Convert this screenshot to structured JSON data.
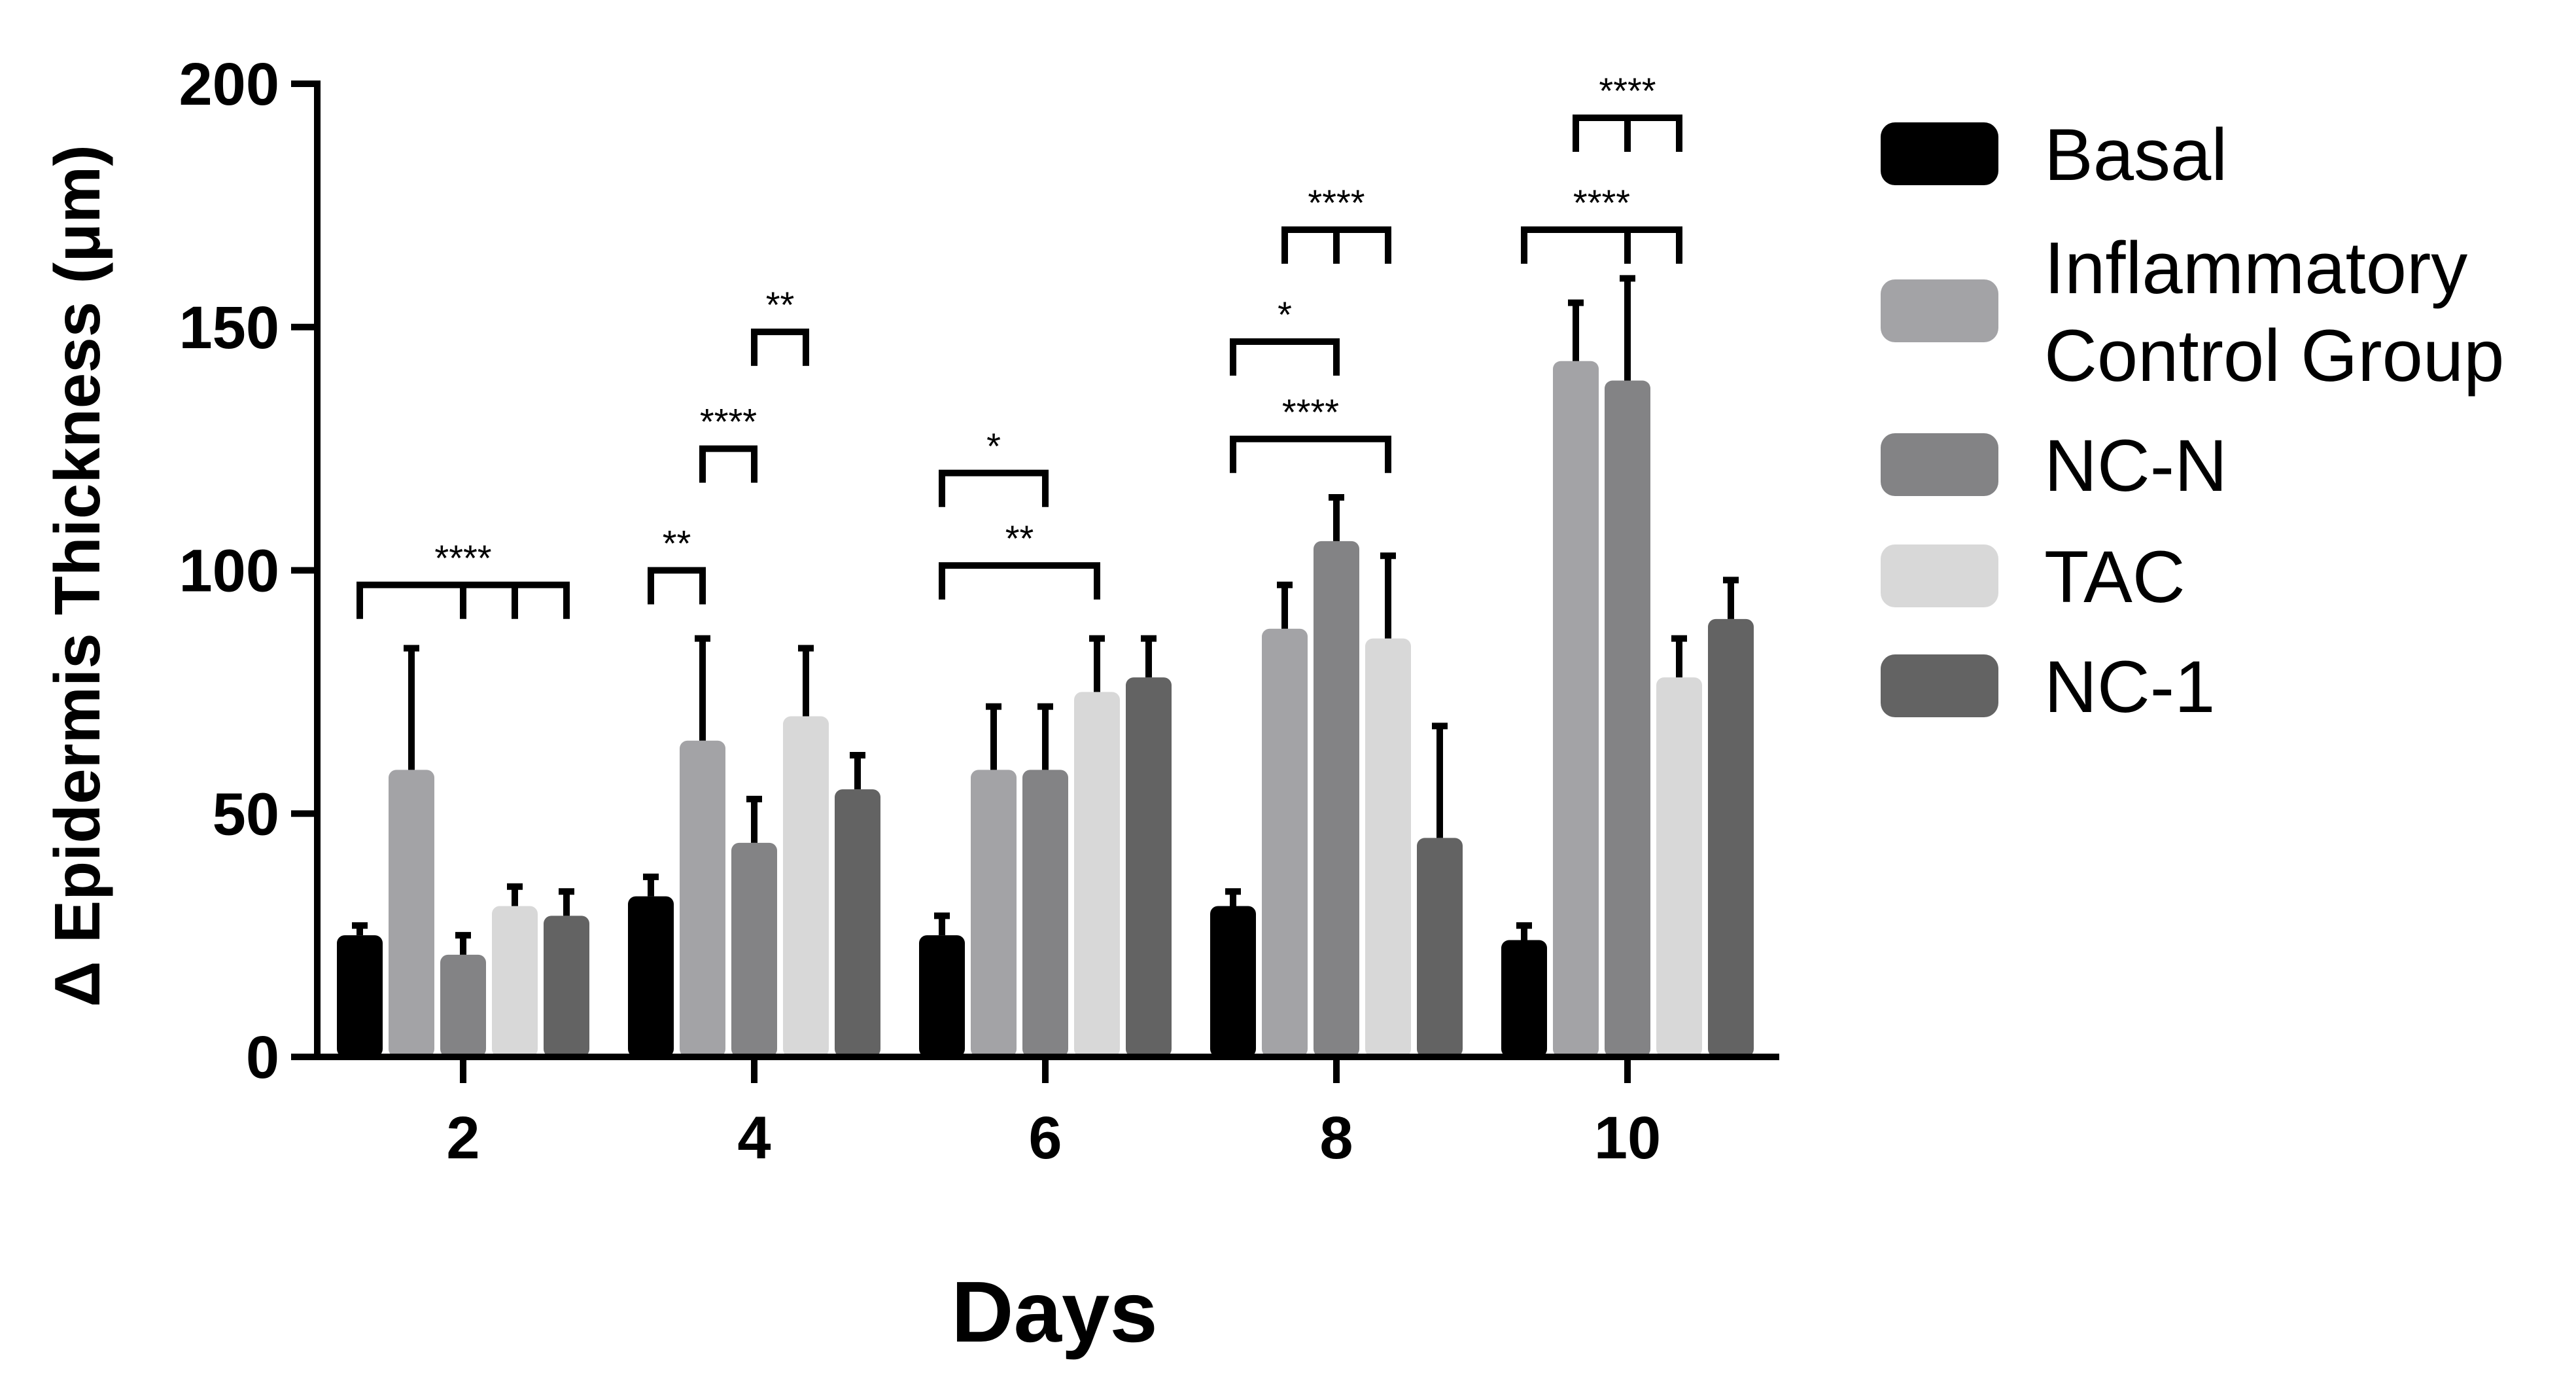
{
  "chart_data": {
    "type": "bar",
    "xlabel": "Days",
    "ylabel": "Δ Epidermis Thickness (μm)",
    "ylim": [
      0,
      200
    ],
    "yticks": [
      0,
      50,
      100,
      150,
      200
    ],
    "categories": [
      "2",
      "4",
      "6",
      "8",
      "10"
    ],
    "series": [
      {
        "name": "Basal",
        "color": "#000000",
        "values": [
          25,
          33,
          25,
          31,
          24
        ],
        "errors": [
          2,
          4,
          4,
          3,
          3
        ]
      },
      {
        "name": "Inflammatory\nControl Group",
        "color": "#a3a3a6",
        "values": [
          59,
          65,
          59,
          88,
          143
        ],
        "errors": [
          25,
          21,
          13,
          9,
          12
        ]
      },
      {
        "name": "NC-N",
        "color": "#838385",
        "values": [
          21,
          44,
          59,
          106,
          139
        ],
        "errors": [
          4,
          9,
          13,
          9,
          21
        ]
      },
      {
        "name": "TAC",
        "color": "#d8d8d8",
        "values": [
          31,
          70,
          75,
          86,
          78
        ],
        "errors": [
          4,
          14,
          11,
          17,
          8
        ]
      },
      {
        "name": "NC-1",
        "color": "#636363",
        "values": [
          29,
          55,
          78,
          45,
          90
        ],
        "errors": [
          5,
          7,
          8,
          23,
          8
        ]
      }
    ],
    "legend_position": "right",
    "grid": false,
    "significance": [
      {
        "label": "****",
        "category": "2",
        "from_series": 0,
        "ticks_at": [
          0,
          2,
          3,
          4
        ],
        "y": 97
      },
      {
        "label": "**",
        "category": "4",
        "from_series": 0,
        "ticks_at": [
          0,
          1
        ],
        "y": 100
      },
      {
        "label": "****",
        "category": "4",
        "from_series": 1,
        "ticks_at": [
          1,
          2
        ],
        "y": 125
      },
      {
        "label": "**",
        "category": "4",
        "from_series": 2,
        "ticks_at": [
          2,
          3
        ],
        "y": 149
      },
      {
        "label": "*",
        "category": "6",
        "from_series": 0,
        "ticks_at": [
          0,
          2
        ],
        "y": 120
      },
      {
        "label": "**",
        "category": "6",
        "from_series": 0,
        "ticks_at": [
          0,
          3
        ],
        "y": 101
      },
      {
        "label": "*",
        "category": "8",
        "from_series": 0,
        "ticks_at": [
          0,
          2
        ],
        "y": 147
      },
      {
        "label": "****",
        "category": "8",
        "from_series": 0,
        "ticks_at": [
          0,
          3
        ],
        "y": 127
      },
      {
        "label": "****",
        "category": "8",
        "from_series": 1,
        "ticks_at": [
          1,
          2,
          3
        ],
        "y": 170
      },
      {
        "label": "****",
        "category": "10",
        "from_series": 0,
        "ticks_at": [
          0,
          2,
          3
        ],
        "y": 170
      },
      {
        "label": "****",
        "category": "10",
        "from_series": 1,
        "ticks_at": [
          1,
          2,
          3
        ],
        "y": 193
      }
    ]
  }
}
